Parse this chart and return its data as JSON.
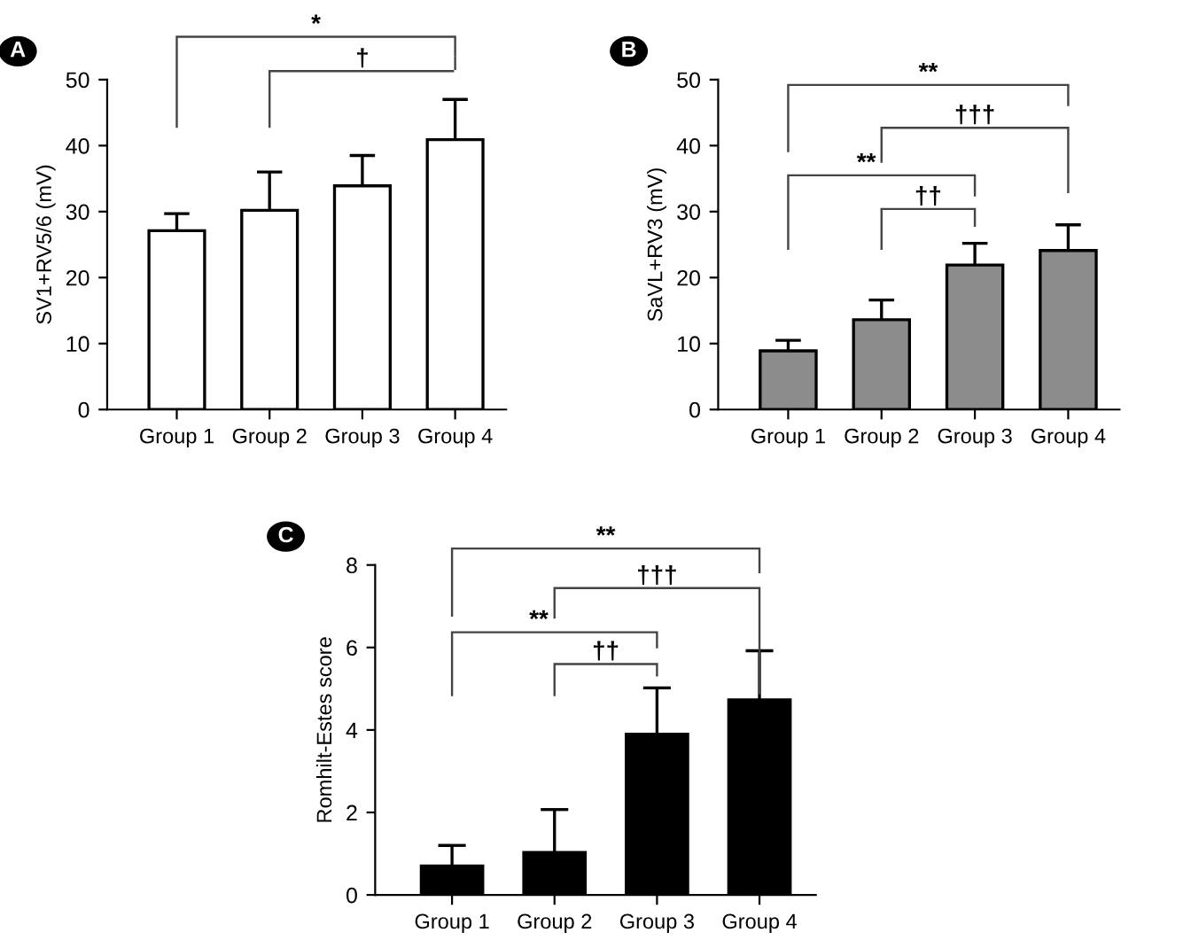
{
  "chart_data": [
    {
      "type": "bar",
      "categories": [
        "Group 1",
        "Group 2",
        "Group 3",
        "Group 4"
      ],
      "ylabel": "SV1+RV5/6 (mV)",
      "ylim": [
        0,
        50
      ],
      "yticks": [
        0,
        10,
        20,
        30,
        40,
        50
      ],
      "series": [
        {
          "color": "#ffffff",
          "values": [
            27.1,
            30.2,
            33.9,
            40.9
          ],
          "errors": [
            [
              27.1,
              29.7
            ],
            [
              30.2,
              36
            ],
            [
              33.9,
              38.5
            ],
            [
              40.9,
              47
            ]
          ]
        }
      ],
      "annotations": [
        "A",
        "*",
        "†"
      ],
      "grid": false,
      "legend": false
    },
    {
      "type": "bar",
      "categories": [
        "Group 1",
        "Group 2",
        "Group 3",
        "Group 4"
      ],
      "ylabel": "SaVL+RV3 (mV)",
      "ylim": [
        0,
        50
      ],
      "yticks": [
        0,
        10,
        20,
        30,
        40,
        50
      ],
      "series": [
        {
          "color": "#8c8c8c",
          "values": [
            8.9,
            13.6,
            21.9,
            24.1
          ],
          "errors": [
            [
              8.9,
              10.5
            ],
            [
              13.6,
              16.6
            ],
            [
              21.9,
              25.2
            ],
            [
              24.1,
              28
            ]
          ]
        }
      ],
      "annotations": [
        "B",
        "**",
        "†††",
        "**",
        "††"
      ],
      "grid": false,
      "legend": false
    },
    {
      "type": "bar",
      "categories": [
        "Group 1",
        "Group 2",
        "Group 3",
        "Group 4"
      ],
      "ylabel": "Romhilt-Estes score",
      "ylim": [
        0,
        8
      ],
      "yticks": [
        0,
        2,
        4,
        6,
        8
      ],
      "series": [
        {
          "color": "#000000",
          "values": [
            0.7,
            1.03,
            3.9,
            4.73
          ],
          "errors": [
            [
              0.7,
              1.2
            ],
            [
              1.03,
              2.07
            ],
            [
              3.9,
              5.02
            ],
            [
              4.73,
              5.92
            ]
          ]
        }
      ],
      "annotations": [
        "C",
        "**",
        "†††",
        "**",
        "††"
      ],
      "grid": false,
      "legend": false
    }
  ]
}
